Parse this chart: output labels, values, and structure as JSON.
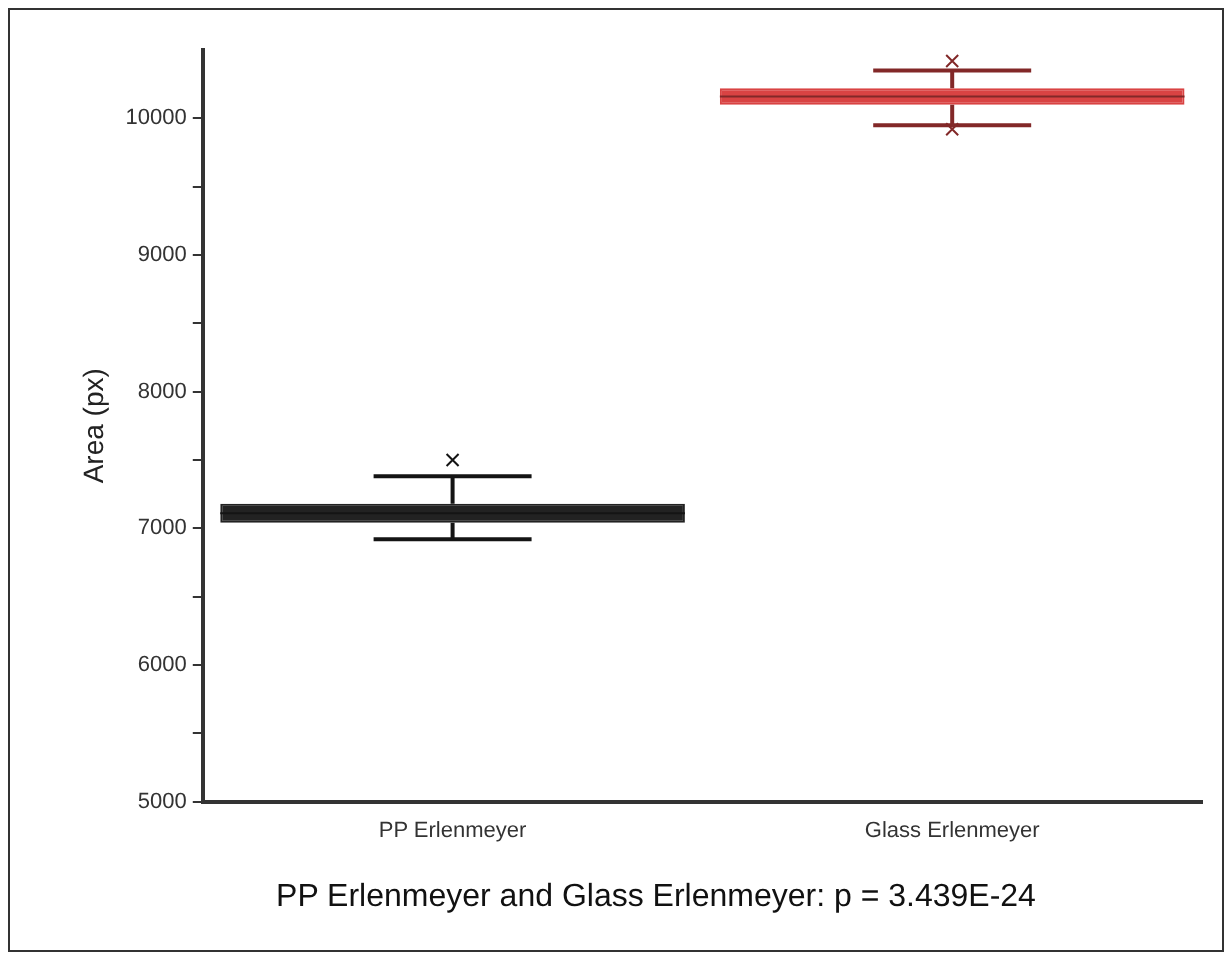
{
  "chart_data": {
    "type": "box",
    "categories": [
      "PP Erlenmeyer",
      "Glass Erlenmeyer"
    ],
    "colors": [
      "#222222",
      "#d94343"
    ],
    "boxes": [
      {
        "low": 6920,
        "q1": 7040,
        "median": 7110,
        "q3": 7180,
        "high": 7380,
        "outliers": [
          7500
        ]
      },
      {
        "low": 9950,
        "q1": 10100,
        "median": 10160,
        "q3": 10220,
        "high": 10350,
        "outliers": [
          10420,
          9920
        ]
      }
    ],
    "ylabel": "Area (px)",
    "ylim": [
      5000,
      10500
    ],
    "yticks": [
      5000,
      {
        "value": 5500,
        "label": null
      },
      6000,
      {
        "value": 6500,
        "label": null
      },
      7000,
      {
        "value": 7500,
        "label": null
      },
      8000,
      {
        "value": 8500,
        "label": null
      },
      9000,
      {
        "value": 9500,
        "label": null
      },
      10000
    ],
    "grid": false,
    "annotations": [
      "PP Erlenmeyer and Glass Erlenmeyer: p = 3.439E-24"
    ]
  }
}
